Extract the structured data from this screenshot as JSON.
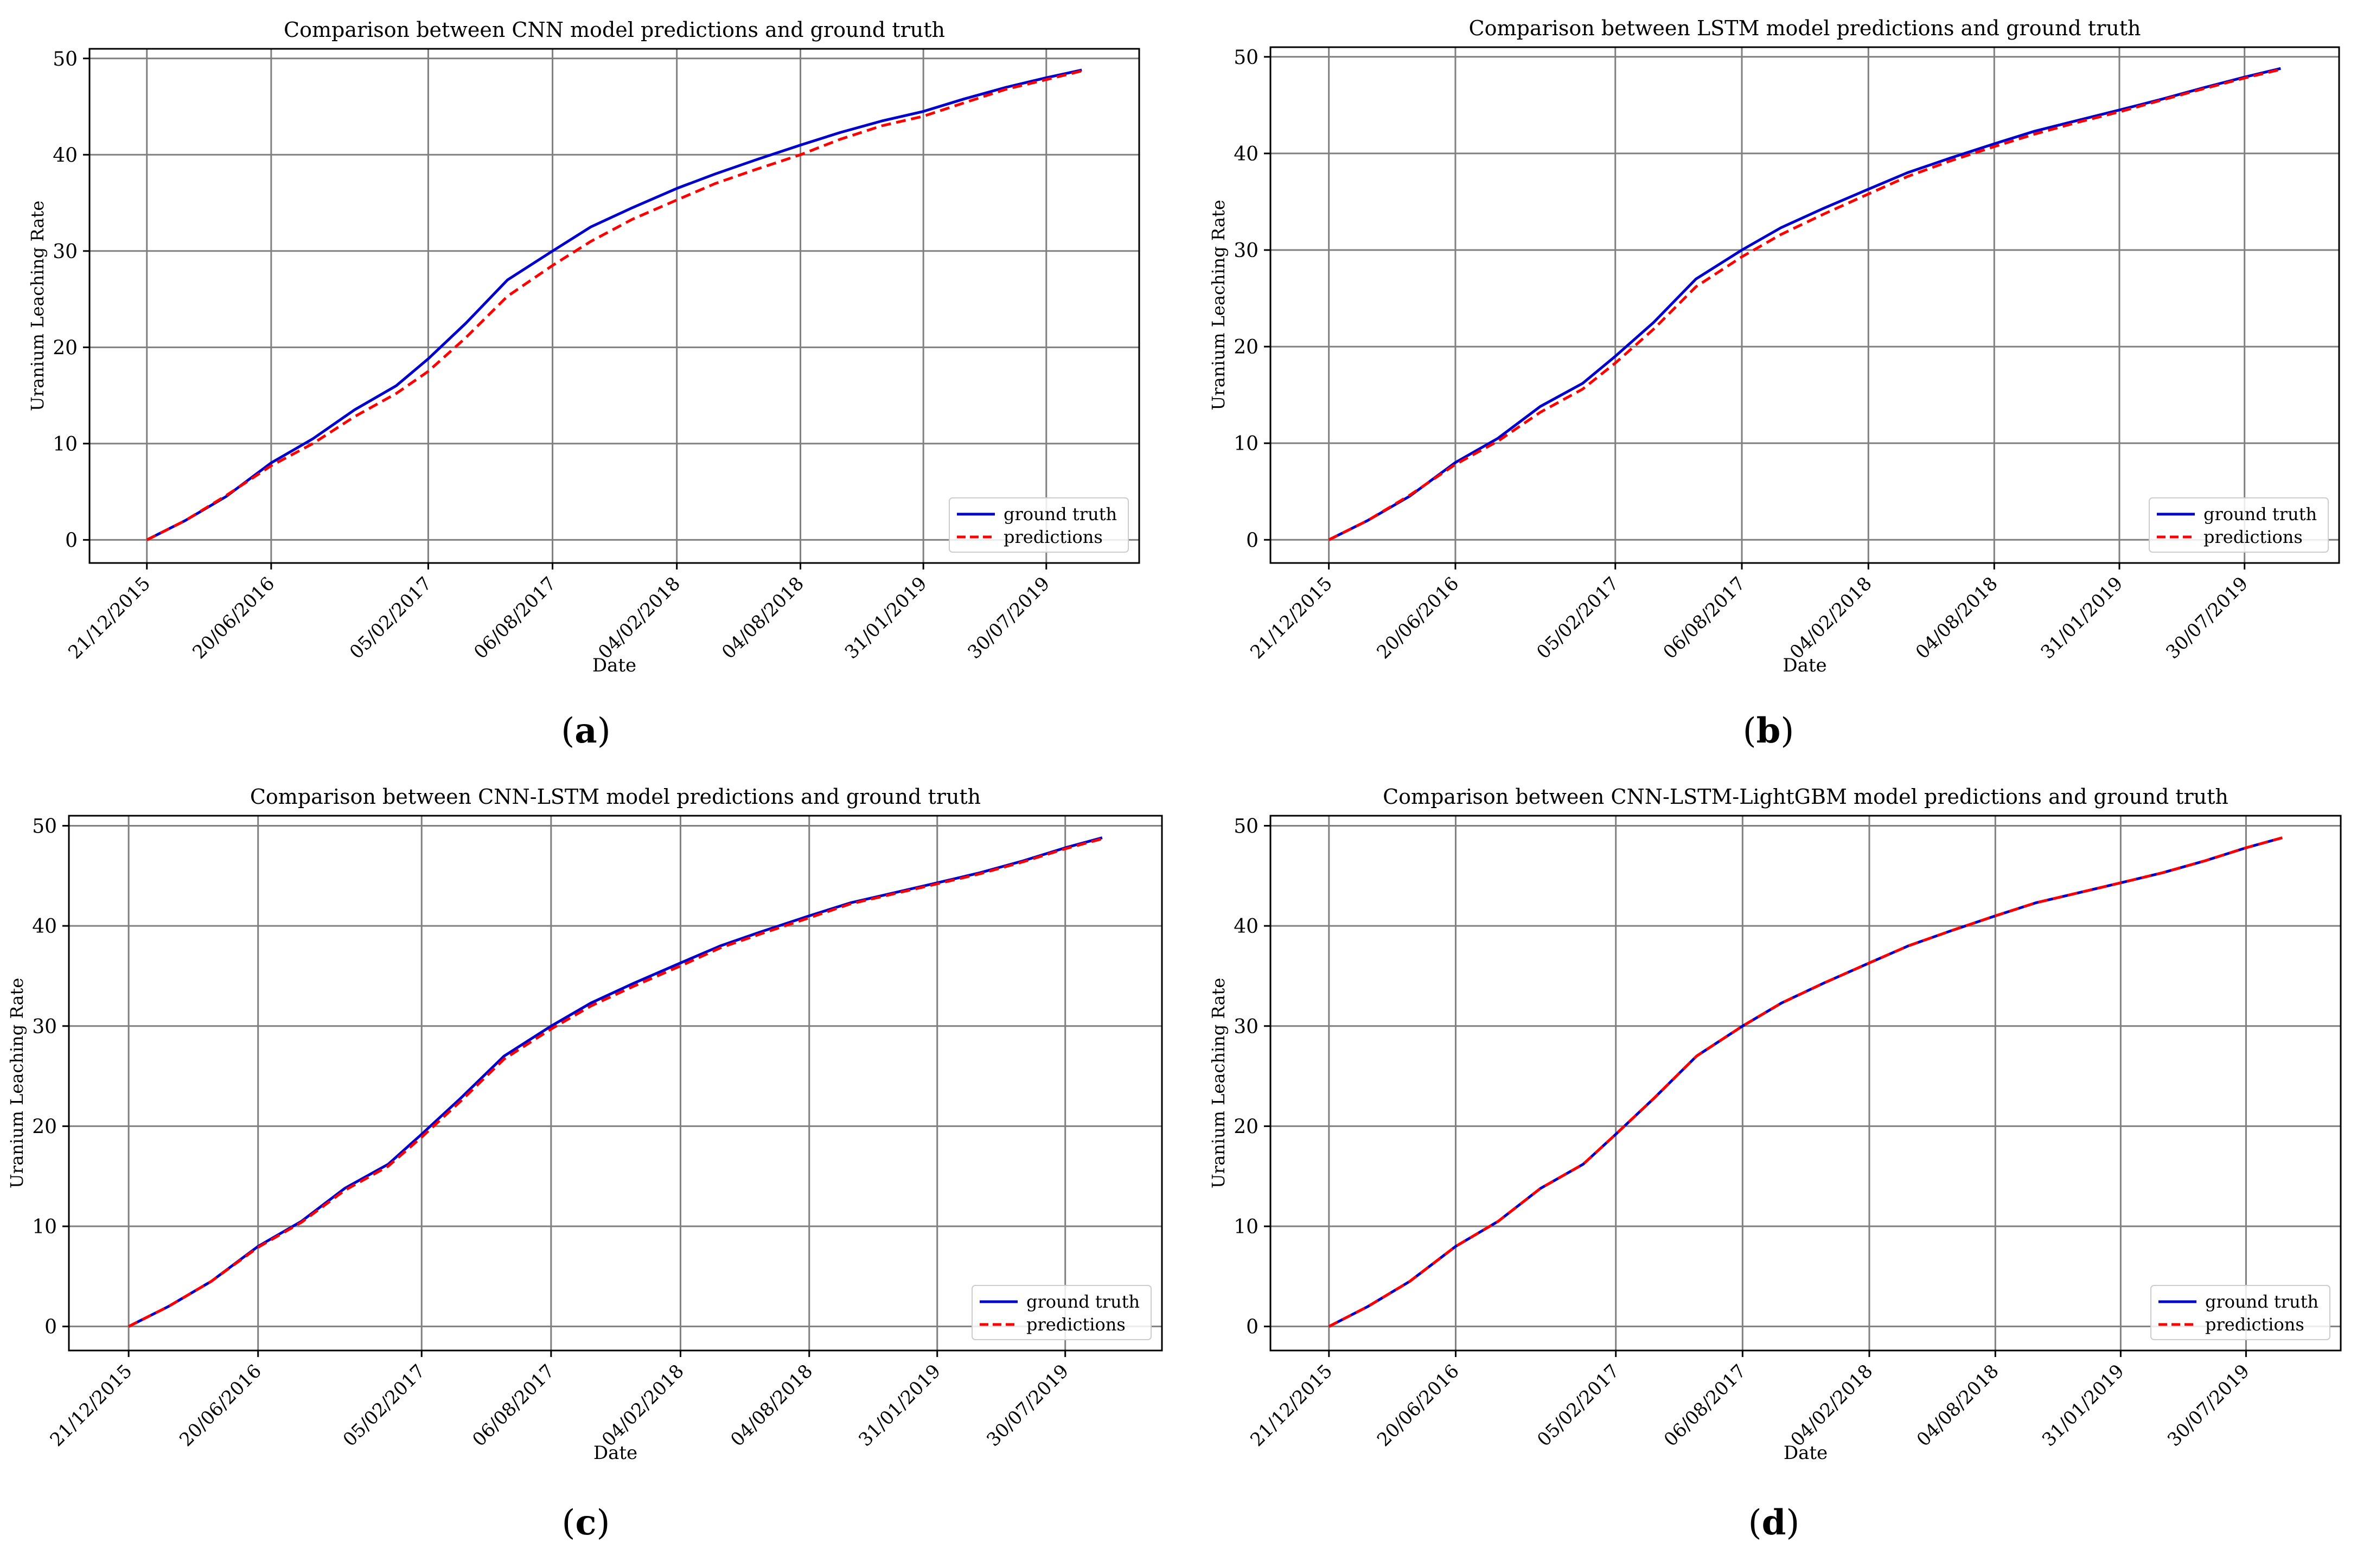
{
  "legend_labels": {
    "ground_truth": "ground truth",
    "predictions": "predictions"
  },
  "colors": {
    "ground_truth": "#0000cc",
    "predictions": "#ff0000",
    "grid": "#808080",
    "axis": "#000000"
  },
  "x_tick_labels": [
    "21/12/2015",
    "20/06/2016",
    "05/02/2017",
    "06/08/2017",
    "04/02/2018",
    "04/08/2018",
    "31/01/2019",
    "30/07/2019"
  ],
  "y_tick_labels": [
    "0",
    "10",
    "20",
    "30",
    "40",
    "50"
  ],
  "panel_labels": [
    "a",
    "b",
    "c",
    "d"
  ],
  "chart_data": [
    {
      "type": "line",
      "title": "Comparison between CNN model predictions and ground truth",
      "xlabel": "Date",
      "ylabel": "Uranium Leaching Rate",
      "ylim": [
        -2.4,
        51
      ],
      "grid": true,
      "legend": "bottom-right",
      "x": [
        "2015-12-21",
        "2016-02-15",
        "2016-04-15",
        "2016-06-20",
        "2016-08-20",
        "2016-10-20",
        "2016-12-20",
        "2017-02-05",
        "2017-04-01",
        "2017-06-01",
        "2017-08-06",
        "2017-10-01",
        "2017-12-01",
        "2018-02-04",
        "2018-04-01",
        "2018-06-01",
        "2018-08-04",
        "2018-10-01",
        "2018-12-01",
        "2019-01-31",
        "2019-04-01",
        "2019-06-01",
        "2019-07-30",
        "2019-09-20"
      ],
      "series": [
        {
          "name": "ground truth",
          "values": [
            0,
            2,
            4.5,
            8,
            10.5,
            13.5,
            16,
            18.8,
            22.5,
            27,
            30,
            32.5,
            34.5,
            36.5,
            38,
            39.5,
            41,
            42.3,
            43.5,
            44.5,
            45.8,
            47,
            48,
            48.8
          ]
        },
        {
          "name": "predictions",
          "values": [
            0,
            2,
            4.6,
            7.7,
            10,
            12.8,
            15.2,
            17.5,
            21,
            25.3,
            28.5,
            31,
            33.3,
            35.3,
            37,
            38.5,
            40,
            41.6,
            43,
            44,
            45.4,
            46.8,
            47.8,
            48.7
          ]
        }
      ]
    },
    {
      "type": "line",
      "title": "Comparison between LSTM model predictions and ground truth",
      "xlabel": "Date",
      "ylabel": "Uranium Leaching Rate",
      "ylim": [
        -2.4,
        51
      ],
      "grid": true,
      "legend": "bottom-right",
      "x": [
        "2015-12-21",
        "2016-02-15",
        "2016-04-15",
        "2016-06-20",
        "2016-08-20",
        "2016-10-20",
        "2016-12-20",
        "2017-02-05",
        "2017-04-01",
        "2017-06-01",
        "2017-08-06",
        "2017-10-01",
        "2017-12-01",
        "2018-02-04",
        "2018-04-01",
        "2018-06-01",
        "2018-08-04",
        "2018-10-01",
        "2018-12-01",
        "2019-01-31",
        "2019-04-01",
        "2019-06-01",
        "2019-07-30",
        "2019-09-20"
      ],
      "series": [
        {
          "name": "ground truth",
          "values": [
            0,
            2,
            4.5,
            8,
            10.5,
            13.8,
            16.2,
            19,
            22.5,
            27,
            30,
            32.3,
            34.3,
            36.3,
            38,
            39.5,
            41,
            42.3,
            43.4,
            44.5,
            45.6,
            46.8,
            47.9,
            48.8
          ]
        },
        {
          "name": "predictions",
          "values": [
            0,
            2,
            4.6,
            7.8,
            10.2,
            13.2,
            15.6,
            18.3,
            21.8,
            26.2,
            29.3,
            31.6,
            33.7,
            35.8,
            37.6,
            39.2,
            40.7,
            42,
            43.2,
            44.3,
            45.5,
            46.7,
            47.8,
            48.7
          ]
        }
      ]
    },
    {
      "type": "line",
      "title": "Comparison between CNN-LSTM model predictions and ground truth",
      "xlabel": "Date",
      "ylabel": "Uranium Leaching Rate",
      "ylim": [
        -2.4,
        51
      ],
      "grid": true,
      "legend": "bottom-right",
      "x": [
        "2015-12-21",
        "2016-02-15",
        "2016-04-15",
        "2016-06-20",
        "2016-08-20",
        "2016-10-20",
        "2016-12-20",
        "2017-02-05",
        "2017-04-01",
        "2017-06-01",
        "2017-08-06",
        "2017-10-01",
        "2017-12-01",
        "2018-02-04",
        "2018-04-01",
        "2018-06-01",
        "2018-08-04",
        "2018-10-01",
        "2018-12-01",
        "2019-01-31",
        "2019-04-01",
        "2019-06-01",
        "2019-07-30",
        "2019-09-20"
      ],
      "series": [
        {
          "name": "ground truth",
          "values": [
            0,
            2,
            4.5,
            8,
            10.5,
            13.8,
            16.2,
            19.2,
            22.8,
            27,
            30,
            32.3,
            34.3,
            36.3,
            38,
            39.5,
            41,
            42.3,
            43.3,
            44.3,
            45.3,
            46.5,
            47.8,
            48.8
          ]
        },
        {
          "name": "predictions",
          "values": [
            0,
            2,
            4.5,
            7.9,
            10.4,
            13.6,
            16,
            18.9,
            22.5,
            26.7,
            29.7,
            32,
            34,
            36,
            37.8,
            39.3,
            40.8,
            42.2,
            43.2,
            44.2,
            45.2,
            46.4,
            47.7,
            48.7
          ]
        }
      ]
    },
    {
      "type": "line",
      "title": "Comparison between CNN-LSTM-LightGBM model predictions and ground truth",
      "xlabel": "Date",
      "ylabel": "Uranium Leaching Rate",
      "ylim": [
        -2.4,
        51
      ],
      "grid": true,
      "legend": "bottom-right",
      "x": [
        "2015-12-21",
        "2016-02-15",
        "2016-04-15",
        "2016-06-20",
        "2016-08-20",
        "2016-10-20",
        "2016-12-20",
        "2017-02-05",
        "2017-04-01",
        "2017-06-01",
        "2017-08-06",
        "2017-10-01",
        "2017-12-01",
        "2018-02-04",
        "2018-04-01",
        "2018-06-01",
        "2018-08-04",
        "2018-10-01",
        "2018-12-01",
        "2019-01-31",
        "2019-04-01",
        "2019-06-01",
        "2019-07-30",
        "2019-09-20"
      ],
      "series": [
        {
          "name": "ground truth",
          "values": [
            0,
            2,
            4.5,
            8,
            10.5,
            13.8,
            16.2,
            19.2,
            22.8,
            27,
            30,
            32.3,
            34.3,
            36.3,
            38,
            39.5,
            41,
            42.3,
            43.3,
            44.3,
            45.3,
            46.5,
            47.8,
            48.8
          ]
        },
        {
          "name": "predictions",
          "values": [
            0,
            2,
            4.5,
            8,
            10.5,
            13.8,
            16.2,
            19.2,
            22.8,
            27,
            30,
            32.3,
            34.3,
            36.3,
            38,
            39.5,
            41,
            42.3,
            43.3,
            44.3,
            45.3,
            46.5,
            47.8,
            48.8
          ]
        }
      ]
    }
  ]
}
